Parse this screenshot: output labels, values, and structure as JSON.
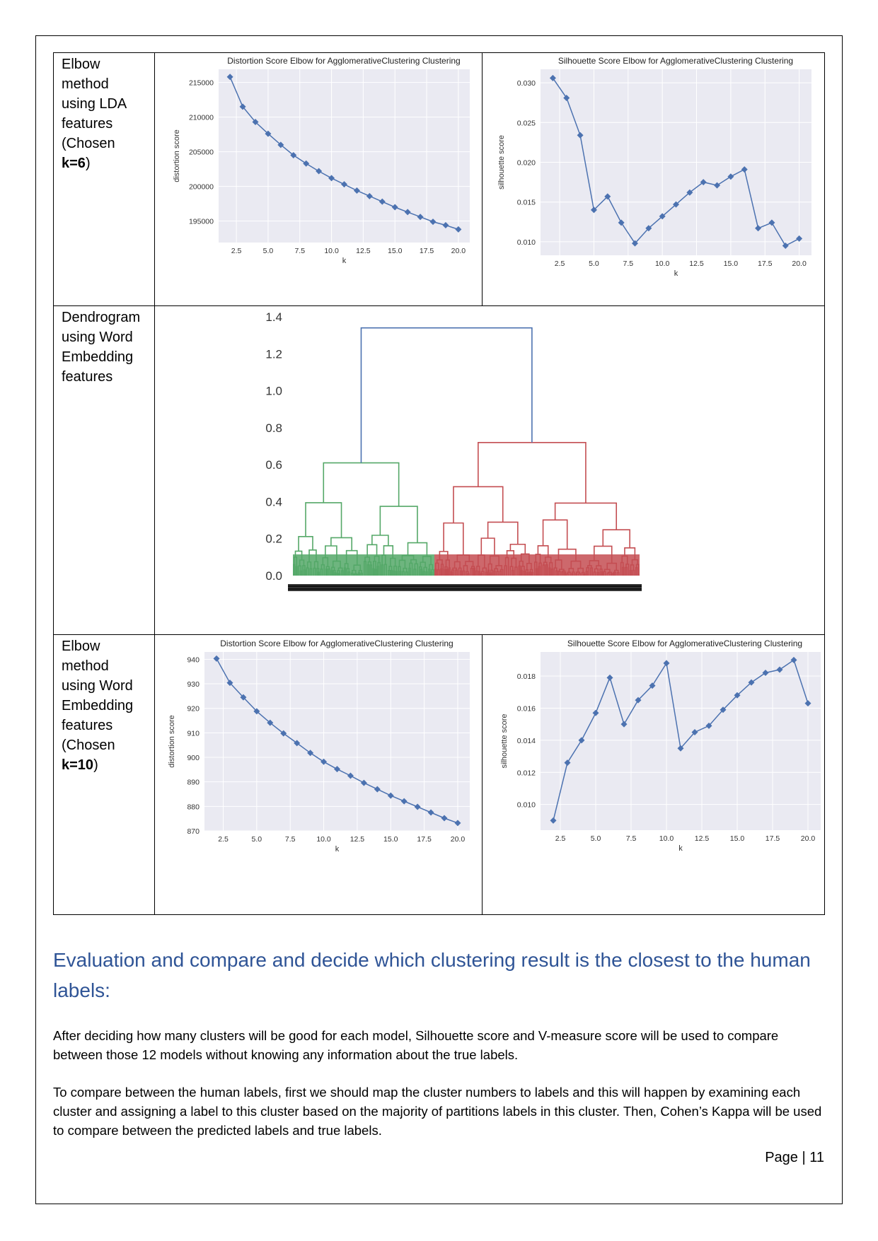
{
  "rows": [
    {
      "label_lines": [
        "Elbow",
        "method",
        "using LDA",
        "features",
        "(Chosen"
      ],
      "label_bold": "k=6",
      "label_suffix": ")"
    },
    {
      "label_lines": [
        "Dendrogram",
        "using Word",
        "Embedding",
        "features"
      ]
    },
    {
      "label_lines": [
        "Elbow",
        "method",
        "using Word",
        "Embedding",
        "features",
        "(Chosen"
      ],
      "label_bold": "k=10",
      "label_suffix": ")"
    }
  ],
  "chart_data": [
    {
      "type": "line",
      "title": "Distortion Score Elbow for AgglomerativeClustering Clustering",
      "xlabel": "k",
      "ylabel": "distortion score",
      "x": [
        2,
        3,
        4,
        5,
        6,
        7,
        8,
        9,
        10,
        11,
        12,
        13,
        14,
        15,
        16,
        17,
        18,
        19,
        20
      ],
      "values": [
        215800,
        211500,
        209300,
        207600,
        206000,
        204500,
        203300,
        202200,
        201200,
        200300,
        199400,
        198600,
        197800,
        197000,
        196300,
        195600,
        194900,
        194400,
        193800
      ],
      "xlim": [
        1.1,
        20.9
      ],
      "ylim": [
        191900,
        216900
      ],
      "xticks": [
        2.5,
        5.0,
        7.5,
        10.0,
        12.5,
        15.0,
        17.5,
        20.0
      ],
      "xtick_labels": [
        "2.5",
        "5.0",
        "7.5",
        "10.0",
        "12.5",
        "15.0",
        "17.5",
        "20.0"
      ],
      "yticks": [
        195000,
        200000,
        205000,
        210000,
        215000
      ],
      "ytick_labels": [
        "195000",
        "200000",
        "205000",
        "210000",
        "215000"
      ],
      "grid": true,
      "color": "#4C72B0"
    },
    {
      "type": "line",
      "title": "Silhouette Score Elbow for AgglomerativeClustering Clustering",
      "xlabel": "k",
      "ylabel": "silhouette score",
      "x": [
        2,
        3,
        4,
        5,
        6,
        7,
        8,
        9,
        10,
        11,
        12,
        13,
        14,
        15,
        16,
        17,
        18,
        19,
        20
      ],
      "values": [
        0.0306,
        0.0281,
        0.0234,
        0.014,
        0.0157,
        0.0124,
        0.0098,
        0.0117,
        0.0132,
        0.0147,
        0.0162,
        0.0175,
        0.0171,
        0.0182,
        0.0191,
        0.0117,
        0.0124,
        0.0095,
        0.0104
      ],
      "xlim": [
        1.1,
        20.9
      ],
      "ylim": [
        0.0083,
        0.0317
      ],
      "xticks": [
        2.5,
        5.0,
        7.5,
        10.0,
        12.5,
        15.0,
        17.5,
        20.0
      ],
      "xtick_labels": [
        "2.5",
        "5.0",
        "7.5",
        "10.0",
        "12.5",
        "15.0",
        "17.5",
        "20.0"
      ],
      "yticks": [
        0.01,
        0.015,
        0.02,
        0.025,
        0.03
      ],
      "ytick_labels": [
        "0.010",
        "0.015",
        "0.020",
        "0.025",
        "0.030"
      ],
      "grid": true,
      "color": "#4C72B0"
    },
    {
      "type": "dendrogram",
      "ylim": [
        0,
        1.4
      ],
      "yticks": [
        0.0,
        0.2,
        0.4,
        0.6,
        0.8,
        1.0,
        1.2,
        1.4
      ],
      "ytick_labels": [
        "0.0",
        "0.2",
        "0.4",
        "0.6",
        "0.8",
        "1.0",
        "1.2",
        "1.4"
      ],
      "root_height": 1.34,
      "clusters": [
        {
          "color": "#55A868",
          "merge_height": 0.61
        },
        {
          "color": "#C44E52",
          "merge_height": 0.72
        }
      ],
      "link_color": "#4C72B0"
    },
    {
      "type": "line",
      "title": "Distortion Score Elbow for AgglomerativeClustering Clustering",
      "xlabel": "k",
      "ylabel": "distortion score",
      "x": [
        2,
        3,
        4,
        5,
        6,
        7,
        8,
        9,
        10,
        11,
        12,
        13,
        14,
        15,
        16,
        17,
        18,
        19,
        20
      ],
      "values": [
        940.3,
        930.4,
        924.5,
        918.8,
        914.1,
        909.8,
        905.8,
        901.8,
        898.2,
        895.2,
        892.5,
        889.6,
        887.0,
        884.4,
        882.1,
        879.8,
        877.5,
        875.2,
        873.2
      ],
      "xlim": [
        1.1,
        20.9
      ],
      "ylim": [
        870,
        943
      ],
      "xticks": [
        2.5,
        5.0,
        7.5,
        10.0,
        12.5,
        15.0,
        17.5,
        20.0
      ],
      "xtick_labels": [
        "2.5",
        "5.0",
        "7.5",
        "10.0",
        "12.5",
        "15.0",
        "17.5",
        "20.0"
      ],
      "yticks": [
        870,
        880,
        890,
        900,
        910,
        920,
        930,
        940
      ],
      "ytick_labels": [
        "870",
        "880",
        "890",
        "900",
        "910",
        "920",
        "930",
        "940"
      ],
      "grid": true,
      "color": "#4C72B0"
    },
    {
      "type": "line",
      "title": "Silhouette Score Elbow for AgglomerativeClustering Clustering",
      "xlabel": "k",
      "ylabel": "silhouette score",
      "x": [
        2,
        3,
        4,
        5,
        6,
        7,
        8,
        9,
        10,
        11,
        12,
        13,
        14,
        15,
        16,
        17,
        18,
        19,
        20
      ],
      "values": [
        0.009,
        0.0126,
        0.014,
        0.0157,
        0.0179,
        0.015,
        0.0165,
        0.0174,
        0.0188,
        0.0135,
        0.0145,
        0.0149,
        0.0159,
        0.0168,
        0.0176,
        0.0182,
        0.0184,
        0.019,
        0.0163
      ],
      "xlim": [
        1.1,
        20.9
      ],
      "ylim": [
        0.0084,
        0.0195
      ],
      "xticks": [
        2.5,
        5.0,
        7.5,
        10.0,
        12.5,
        15.0,
        17.5,
        20.0
      ],
      "xtick_labels": [
        "2.5",
        "5.0",
        "7.5",
        "10.0",
        "12.5",
        "15.0",
        "17.5",
        "20.0"
      ],
      "yticks": [
        0.01,
        0.012,
        0.014,
        0.016,
        0.018
      ],
      "ytick_labels": [
        "0.010",
        "0.012",
        "0.014",
        "0.016",
        "0.018"
      ],
      "grid": true,
      "color": "#4C72B0"
    }
  ],
  "section": {
    "heading": "Evaluation and compare and decide which clustering result is the closest to the human labels:",
    "paragraph_1": "After deciding how many clusters will be good for each model, Silhouette score and V-measure score will be used to compare between those 12 models without knowing any information about the true labels.",
    "paragraph_2": "To compare between the human labels, first we should map the cluster numbers to labels and this will happen by examining each cluster and assigning a label to this cluster based on the majority of partitions labels in this cluster. Then, Cohen’s Kappa will be used to compare between the predicted labels and true labels."
  },
  "footer": {
    "page_number": "Page | 11"
  }
}
